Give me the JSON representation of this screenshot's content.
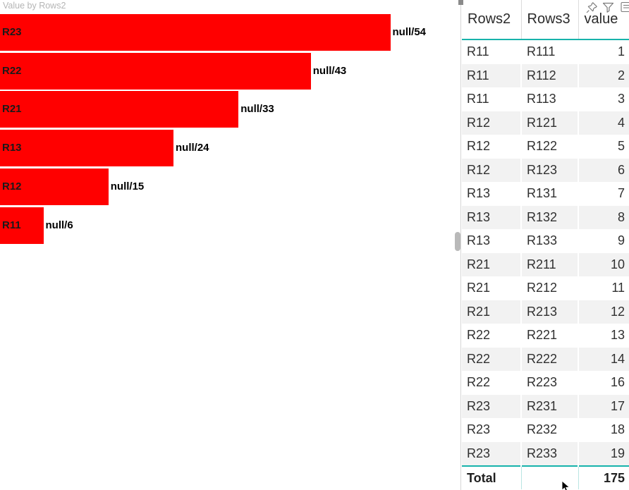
{
  "chart": {
    "title": "Value by Rows2"
  },
  "chart_data": {
    "type": "bar",
    "orientation": "horizontal",
    "title": "Value by Rows2",
    "categories": [
      "R23",
      "R22",
      "R21",
      "R13",
      "R12",
      "R11"
    ],
    "values": [
      54,
      43,
      33,
      24,
      15,
      6
    ],
    "data_labels": [
      "null/54",
      "null/43",
      "null/33",
      "null/24",
      "null/15",
      "null/6"
    ],
    "xlim": [
      0,
      54
    ],
    "bar_color": "#ff0000",
    "grid": "off",
    "legend": "none",
    "data_label_position": "end-of-bar"
  },
  "table": {
    "columns": [
      "Rows2",
      "Rows3",
      "value"
    ],
    "rows": [
      [
        "R11",
        "R111",
        1
      ],
      [
        "R11",
        "R112",
        2
      ],
      [
        "R11",
        "R113",
        3
      ],
      [
        "R12",
        "R121",
        4
      ],
      [
        "R12",
        "R122",
        5
      ],
      [
        "R12",
        "R123",
        6
      ],
      [
        "R13",
        "R131",
        7
      ],
      [
        "R13",
        "R132",
        8
      ],
      [
        "R13",
        "R133",
        9
      ],
      [
        "R21",
        "R211",
        10
      ],
      [
        "R21",
        "R212",
        11
      ],
      [
        "R21",
        "R213",
        12
      ],
      [
        "R22",
        "R221",
        13
      ],
      [
        "R22",
        "R222",
        14
      ],
      [
        "R22",
        "R223",
        16
      ],
      [
        "R23",
        "R231",
        17
      ],
      [
        "R23",
        "R232",
        18
      ],
      [
        "R23",
        "R233",
        19
      ]
    ],
    "total_label": "Total",
    "total_value": 175
  },
  "visual_header": {
    "icons": [
      "pin-icon",
      "filter-icon",
      "more-icon"
    ]
  },
  "colors": {
    "bar": "#ff0000",
    "accent_teal": "#17b3ab",
    "row_alt": "#f2f2f2",
    "title_gray": "#b5b5b5"
  }
}
